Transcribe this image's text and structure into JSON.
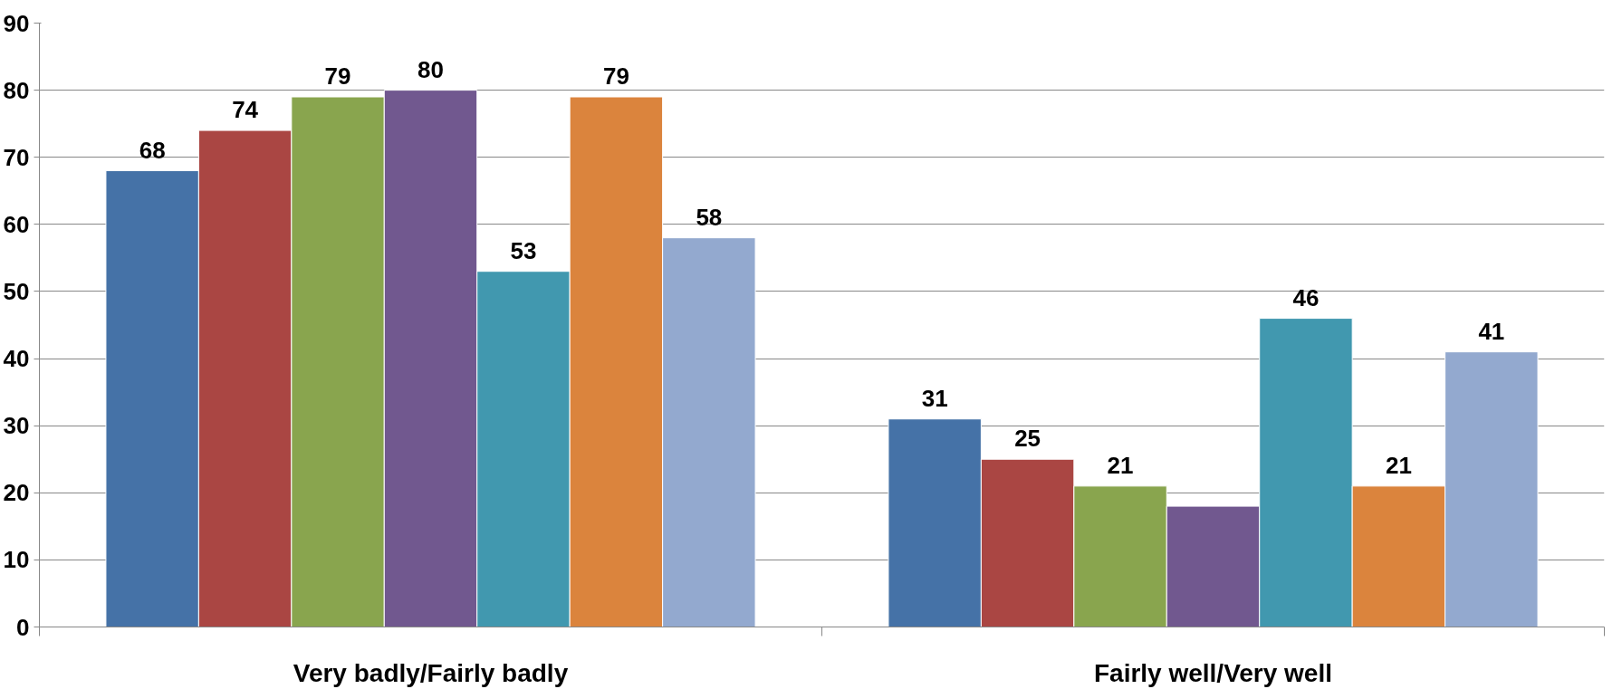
{
  "chart_data": {
    "type": "bar",
    "categories": [
      "Very badly/Fairly badly",
      "Fairly well/Very well"
    ],
    "series": [
      {
        "color": "#4572a7",
        "values": [
          68,
          31
        ],
        "value_labels": [
          "68",
          "31"
        ]
      },
      {
        "color": "#aa4643",
        "values": [
          74,
          25
        ],
        "value_labels": [
          "74",
          "25"
        ]
      },
      {
        "color": "#89a54e",
        "values": [
          79,
          21
        ],
        "value_labels": [
          "79",
          "21"
        ]
      },
      {
        "color": "#71588f",
        "values": [
          80,
          18
        ],
        "value_labels": [
          "80",
          null
        ]
      },
      {
        "color": "#4198af",
        "values": [
          53,
          46
        ],
        "value_labels": [
          "53",
          "46"
        ]
      },
      {
        "color": "#db843d",
        "values": [
          79,
          21
        ],
        "value_labels": [
          "79",
          "21"
        ]
      },
      {
        "color": "#93a9cf",
        "values": [
          58,
          41
        ],
        "value_labels": [
          "58",
          "41"
        ]
      }
    ],
    "ylim": [
      0,
      90
    ],
    "yticks": [
      0,
      10,
      20,
      30,
      40,
      50,
      60,
      70,
      80,
      90
    ],
    "grid": "y"
  }
}
